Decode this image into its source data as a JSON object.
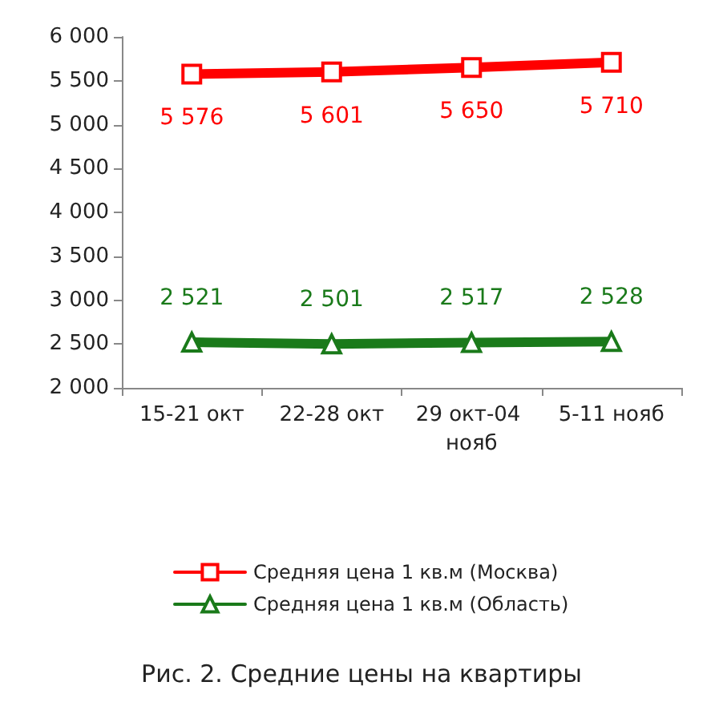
{
  "chart_data": {
    "type": "line",
    "title": "Рис. 2. Средние цены на квартиры",
    "categories": [
      "15-21 окт",
      "22-28 окт",
      "29 окт-04 нояб",
      "5-11 нояб"
    ],
    "series": [
      {
        "name": "Средняя цена 1 кв.м (Москва)",
        "color": "#ff0000",
        "marker": "square",
        "values": [
          5576,
          5601,
          5650,
          5710
        ],
        "value_labels": [
          "5 576",
          "5 601",
          "5 650",
          "5 710"
        ]
      },
      {
        "name": "Средняя цена 1 кв.м (Область)",
        "color": "#1a7a1a",
        "marker": "triangle",
        "values": [
          2521,
          2501,
          2517,
          2528
        ],
        "value_labels": [
          "2 521",
          "2 501",
          "2 517",
          "2 528"
        ]
      }
    ],
    "ylim": [
      2000,
      6000
    ],
    "yticks": [
      {
        "value": 2000,
        "label": "2 000"
      },
      {
        "value": 2500,
        "label": "2 500"
      },
      {
        "value": 3000,
        "label": "3 000"
      },
      {
        "value": 3500,
        "label": "3 500"
      },
      {
        "value": 4000,
        "label": "4 000"
      },
      {
        "value": 4500,
        "label": "4 500"
      },
      {
        "value": 5000,
        "label": "5 000"
      },
      {
        "value": 5500,
        "label": "5 500"
      },
      {
        "value": 6000,
        "label": "6 000"
      }
    ],
    "grid": false,
    "legend": "bottom",
    "line_style": "solid"
  }
}
